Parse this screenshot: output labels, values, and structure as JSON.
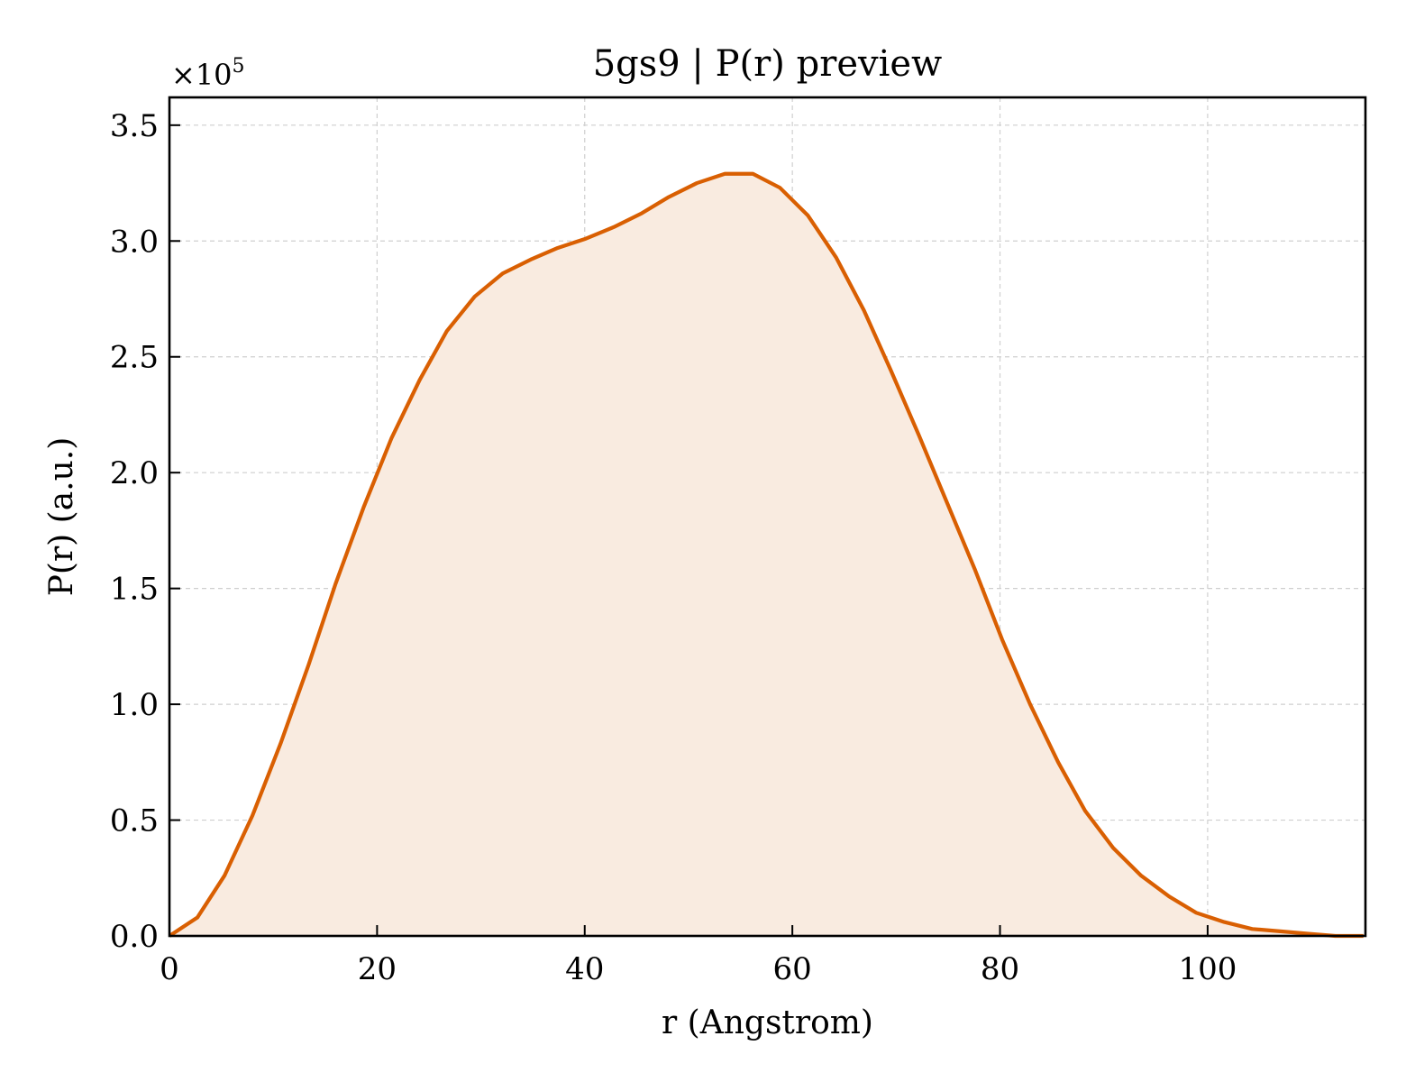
{
  "chart_data": {
    "type": "area",
    "title": "5gs9 | P(r) preview",
    "xlabel": "r (Angstrom)",
    "ylabel": "P(r) (a.u.)",
    "y_scale_label": "×10",
    "y_scale_exponent": "5",
    "xlim": [
      0,
      115.2
    ],
    "ylim": [
      0,
      3.62
    ],
    "y_multiplier": 100000,
    "x_ticks": [
      0,
      20,
      40,
      60,
      80,
      100
    ],
    "x_tick_labels": [
      "0",
      "20",
      "40",
      "60",
      "80",
      "100"
    ],
    "y_ticks": [
      0,
      0.5,
      1.0,
      1.5,
      2.0,
      2.5,
      3.0,
      3.5
    ],
    "y_tick_labels": [
      "0.0",
      "0.5",
      "1.0",
      "1.5",
      "2.0",
      "2.5",
      "3.0",
      "3.5"
    ],
    "grid": true,
    "line_color": "#d95f02",
    "fill_color": "#f9ebe0",
    "x": [
      0,
      2.7,
      5.3,
      8.0,
      10.7,
      13.4,
      16.0,
      18.7,
      21.4,
      24.1,
      26.7,
      29.4,
      32.1,
      34.8,
      37.4,
      40.1,
      42.8,
      45.5,
      48.1,
      50.8,
      53.5,
      56.2,
      58.8,
      61.5,
      64.2,
      66.9,
      69.5,
      72.2,
      74.9,
      77.6,
      80.2,
      82.9,
      85.6,
      88.2,
      90.9,
      93.6,
      96.3,
      98.9,
      101.6,
      104.3,
      107.0,
      109.6,
      112.3,
      115.0
    ],
    "y": [
      0.0,
      0.08,
      0.26,
      0.52,
      0.83,
      1.17,
      1.52,
      1.85,
      2.15,
      2.4,
      2.61,
      2.76,
      2.86,
      2.92,
      2.97,
      3.01,
      3.06,
      3.12,
      3.19,
      3.25,
      3.29,
      3.29,
      3.23,
      3.11,
      2.93,
      2.7,
      2.44,
      2.16,
      1.87,
      1.58,
      1.28,
      1.0,
      0.75,
      0.54,
      0.38,
      0.26,
      0.17,
      0.1,
      0.06,
      0.03,
      0.02,
      0.01,
      0.0,
      0.0
    ]
  }
}
